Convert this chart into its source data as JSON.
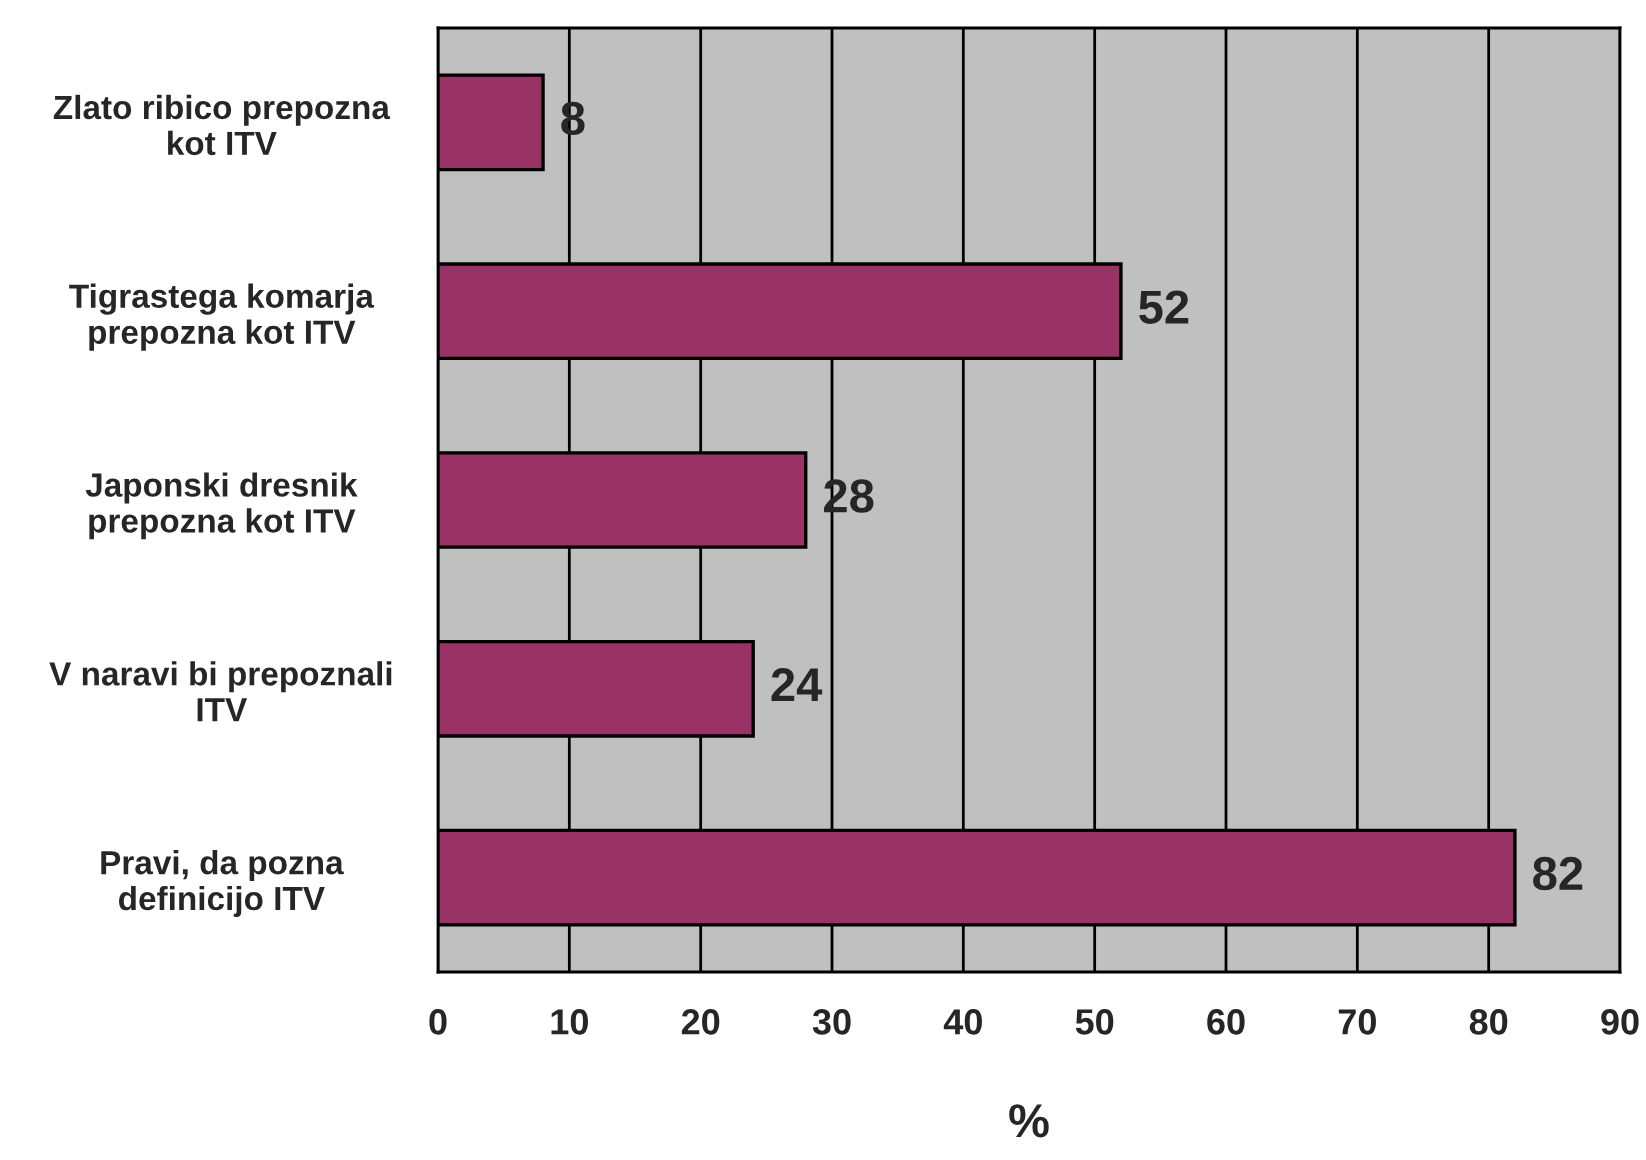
{
  "chart_data": {
    "type": "bar",
    "orientation": "horizontal",
    "xlabel": "%",
    "categories": [
      "Zlato ribico prepozna\nkot ITV",
      "Tigrastega komarja\nprepozna kot ITV",
      "Japonski dresnik\nprepozna kot ITV",
      "V naravi bi prepoznali\nITV",
      "Pravi, da pozna\ndefinicijo ITV"
    ],
    "values": [
      8,
      52,
      28,
      24,
      82
    ],
    "color": "#993366",
    "xlim": [
      0,
      90
    ],
    "xticks": [
      0,
      10,
      20,
      30,
      40,
      50,
      60,
      70,
      80,
      90
    ],
    "grid": "x",
    "data_labels": true,
    "legend": false
  }
}
